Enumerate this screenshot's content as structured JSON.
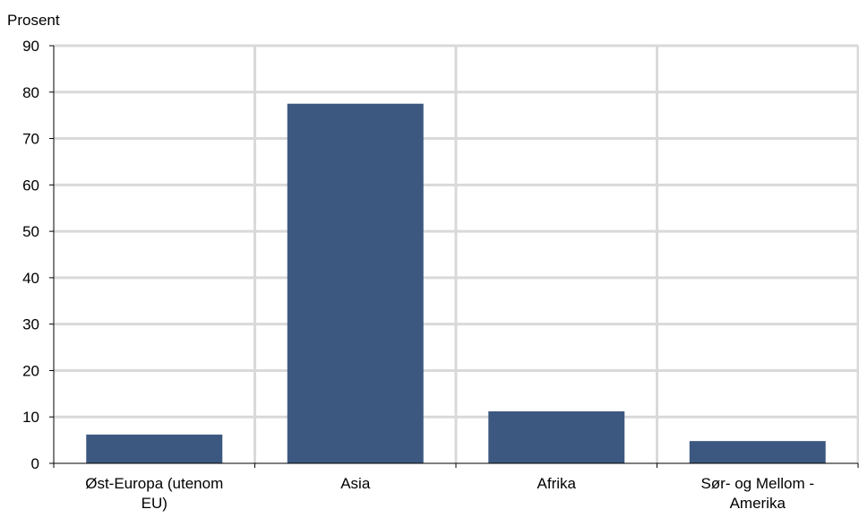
{
  "chart_data": {
    "type": "bar",
    "ylabel": "Prosent",
    "categories": [
      [
        "Øst-Europa (utenom",
        "EU)"
      ],
      [
        "Asia"
      ],
      [
        "Afrika"
      ],
      [
        "Sør- og Mellom -",
        "Amerika"
      ]
    ],
    "values": [
      6.2,
      77.5,
      11.2,
      4.8
    ],
    "ylim": [
      0,
      90
    ],
    "yticks": [
      0,
      10,
      20,
      30,
      40,
      50,
      60,
      70,
      80,
      90
    ],
    "grid": true,
    "colors": {
      "bar": "#3d5880",
      "grid": "#d9d9d9",
      "axis": "#000000"
    }
  }
}
